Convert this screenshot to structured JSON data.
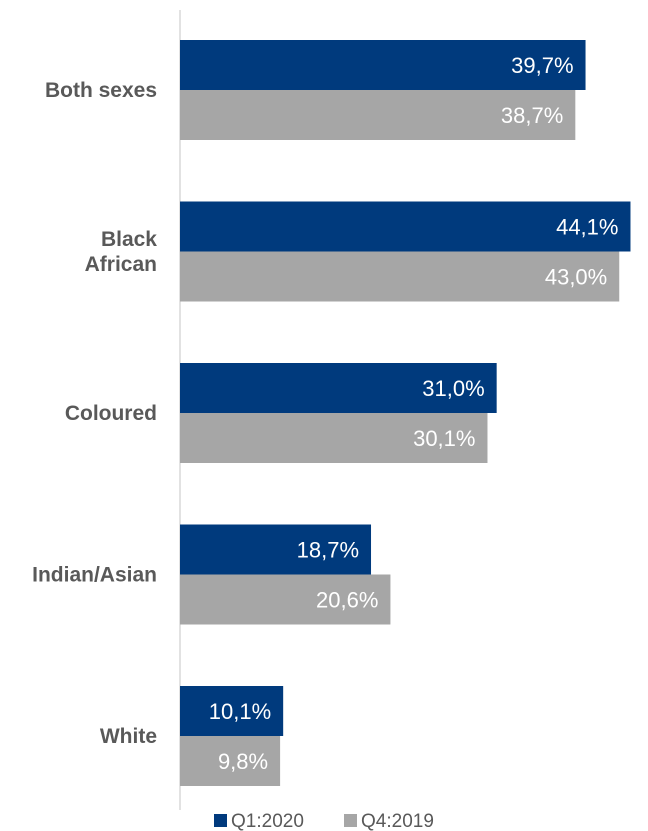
{
  "chart_data": {
    "type": "bar",
    "orientation": "horizontal",
    "categories": [
      [
        "Both sexes"
      ],
      [
        "Black",
        "African"
      ],
      [
        "Coloured"
      ],
      [
        "Indian/Asian"
      ],
      [
        "White"
      ]
    ],
    "series": [
      {
        "name": "Q1:2020",
        "color": "#003a7d",
        "values": [
          39.7,
          44.1,
          31.0,
          18.7,
          10.1
        ],
        "labels": [
          "39,7%",
          "44,1%",
          "31,0%",
          "18,7%",
          "10,1%"
        ]
      },
      {
        "name": "Q4:2019",
        "color": "#a6a6a6",
        "values": [
          38.7,
          43.0,
          30.1,
          20.6,
          9.8
        ],
        "labels": [
          "38,7%",
          "43,0%",
          "30,1%",
          "20,6%",
          "9,8%"
        ]
      }
    ],
    "xlim": [
      0,
      45
    ],
    "grid": false,
    "legend": "bottom"
  }
}
